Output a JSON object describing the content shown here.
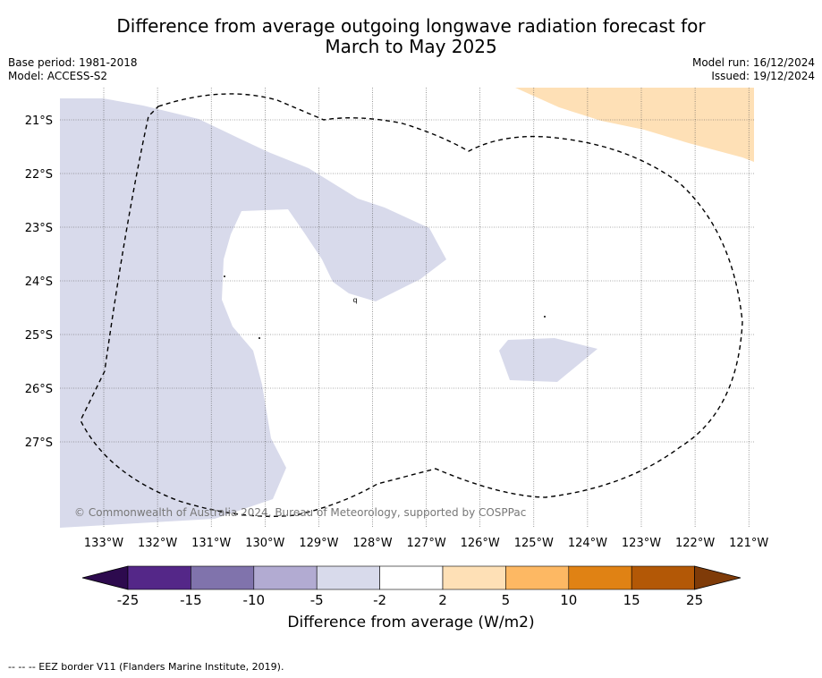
{
  "title_line1": "Difference from average outgoing longwave radiation forecast for",
  "title_line2": "March to May 2025",
  "base_period": "Base period: 1981-2018",
  "model": "Model: ACCESS-S2",
  "model_run": "Model run: 16/12/2024",
  "issued": "Issued: 19/12/2024",
  "copyright": "© Commonwealth of Australia 2024, Bureau of Meteorology, supported by COSPPac",
  "colorbar_label": "Difference from average (W/m2)",
  "footer": "--  --  -- EEZ border V11 (Flanders Marine Institute, 2019).",
  "lon_labels": [
    "133°W",
    "132°W",
    "131°W",
    "130°W",
    "129°W",
    "128°W",
    "127°W",
    "126°W",
    "125°W",
    "124°W",
    "123°W",
    "122°W",
    "121°W"
  ],
  "lat_labels": [
    "21°S",
    "22°S",
    "23°S",
    "24°S",
    "25°S",
    "26°S",
    "27°S"
  ],
  "colorbar": {
    "ticks": [
      "-25",
      "-15",
      "-10",
      "-5",
      "-2",
      "2",
      "5",
      "10",
      "15",
      "25"
    ],
    "colors": [
      "#2d0a4e",
      "#542788",
      "#8073ac",
      "#b2abd2",
      "#d8daeb",
      "#ffffff",
      "#fee0b6",
      "#fdb863",
      "#e08214",
      "#b35806",
      "#7f3b08"
    ]
  },
  "legend_regions": [
    {
      "name": "below-average-2-to-5",
      "color": "#d8daeb"
    },
    {
      "name": "above-average-2-to-5",
      "color": "#fee0b6"
    }
  ]
}
